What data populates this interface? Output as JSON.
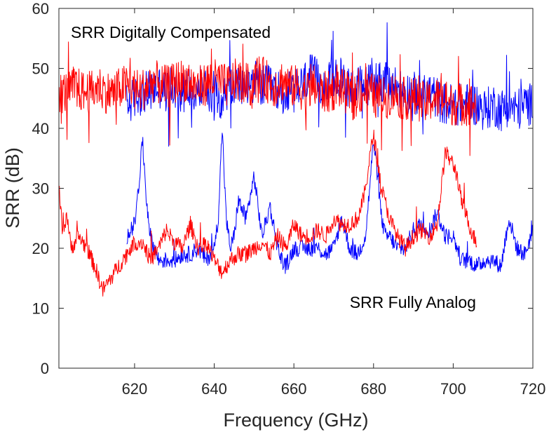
{
  "chart_data": {
    "type": "line",
    "xlabel": "Frequency (GHz)",
    "ylabel": "SRR (dB)",
    "xlim": [
      601,
      720
    ],
    "ylim": [
      0,
      60
    ],
    "xticks": [
      620,
      640,
      660,
      680,
      700,
      720
    ],
    "yticks": [
      0,
      10,
      20,
      30,
      40,
      50,
      60
    ],
    "grid": false,
    "box": true,
    "annotations": [
      {
        "text": "SRR Digitally Compensated",
        "x": 604,
        "y": 56
      },
      {
        "text": "SRR Fully Analog",
        "x": 674,
        "y": 11
      }
    ],
    "series": [
      {
        "color": "#0000ff",
        "group": "digital",
        "x": [
          618,
          620,
          622,
          624,
          626,
          628,
          630,
          632,
          634,
          636,
          638,
          640,
          642,
          644,
          646,
          648,
          650,
          652,
          654,
          656,
          658,
          660,
          662,
          664,
          666,
          668,
          670,
          672,
          674,
          676,
          678,
          680,
          682,
          684,
          686,
          688,
          690,
          692,
          694,
          696,
          698,
          700,
          702,
          704,
          706,
          708,
          710,
          712,
          714,
          716,
          718,
          720
        ],
        "y": [
          44,
          45,
          46,
          46,
          47,
          46,
          47,
          46,
          47,
          46,
          47,
          46,
          45,
          47,
          47,
          47,
          48,
          47,
          47,
          46,
          46,
          46,
          47,
          49,
          48,
          47,
          48,
          48,
          47,
          47,
          47,
          48,
          48,
          47,
          47,
          46,
          46,
          45,
          46,
          45,
          44,
          44,
          44,
          44,
          44,
          43,
          44,
          43,
          44,
          43,
          44,
          44
        ]
      },
      {
        "color": "#ff0000",
        "group": "digital",
        "x": [
          601,
          603,
          605,
          607,
          609,
          611,
          613,
          615,
          617,
          619,
          621,
          623,
          625,
          627,
          629,
          631,
          633,
          635,
          637,
          639,
          641,
          643,
          645,
          647,
          649,
          651,
          653,
          655,
          657,
          659,
          661,
          663,
          665,
          667,
          669,
          671,
          673,
          675,
          677,
          679,
          681,
          683,
          685,
          687,
          689,
          691,
          693,
          695,
          697,
          699,
          701,
          703,
          705,
          706
        ],
        "y": [
          46,
          46,
          47,
          46,
          46,
          47,
          46,
          46,
          47,
          47,
          46,
          47,
          48,
          47,
          47,
          48,
          48,
          47,
          47,
          48,
          48,
          47,
          48,
          48,
          47,
          49,
          48,
          47,
          48,
          47,
          47,
          46,
          47,
          46,
          46,
          47,
          46,
          45,
          46,
          46,
          45,
          45,
          46,
          45,
          45,
          45,
          44,
          45,
          45,
          44,
          44,
          44,
          44,
          44
        ]
      },
      {
        "color": "#0000ff",
        "group": "analog",
        "x": [
          618,
          619,
          620,
          621,
          622,
          623,
          624,
          625,
          626,
          628,
          630,
          632,
          634,
          636,
          638,
          640,
          641,
          642,
          643,
          644,
          645,
          646,
          648,
          650,
          652,
          654,
          656,
          657,
          658,
          660,
          662,
          664,
          666,
          668,
          670,
          672,
          674,
          676,
          678,
          679,
          680,
          681,
          682,
          683,
          684,
          686,
          688,
          690,
          692,
          694,
          696,
          698,
          700,
          702,
          704,
          706,
          708,
          710,
          712,
          714,
          716,
          718,
          720
        ],
        "y": [
          22,
          23,
          24,
          30,
          38,
          28,
          22,
          20,
          18,
          18,
          18,
          19,
          19,
          20,
          18,
          20,
          25,
          40,
          25,
          20,
          22,
          28,
          25,
          32,
          22,
          27,
          20,
          18,
          17,
          20,
          20,
          20,
          20,
          19,
          20,
          25,
          20,
          19,
          22,
          30,
          38,
          32,
          25,
          22,
          22,
          20,
          20,
          23,
          24,
          23,
          26,
          22,
          22,
          18,
          18,
          17,
          18,
          18,
          17,
          25,
          20,
          19,
          23
        ]
      },
      {
        "color": "#ff0000",
        "group": "analog",
        "x": [
          601,
          602,
          603,
          604,
          606,
          608,
          610,
          612,
          614,
          616,
          618,
          620,
          622,
          624,
          626,
          628,
          630,
          632,
          634,
          636,
          638,
          640,
          642,
          644,
          646,
          648,
          650,
          652,
          654,
          656,
          658,
          660,
          662,
          664,
          666,
          668,
          670,
          672,
          674,
          676,
          677,
          678,
          679,
          680,
          682,
          684,
          686,
          688,
          690,
          692,
          694,
          696,
          697,
          698,
          699,
          700,
          701,
          702,
          703,
          704,
          705,
          706
        ],
        "y": [
          30,
          22,
          26,
          20,
          22,
          20,
          17,
          13,
          15,
          17,
          19,
          21,
          21,
          18,
          20,
          23,
          21,
          20,
          24,
          20,
          21,
          18,
          16,
          18,
          19,
          19,
          20,
          21,
          19,
          22,
          20,
          24,
          22,
          22,
          23,
          22,
          25,
          24,
          24,
          25,
          27,
          30,
          35,
          39,
          30,
          25,
          22,
          20,
          22,
          23,
          22,
          24,
          30,
          36,
          35,
          34,
          32,
          28,
          26,
          24,
          22,
          21
        ]
      }
    ]
  }
}
